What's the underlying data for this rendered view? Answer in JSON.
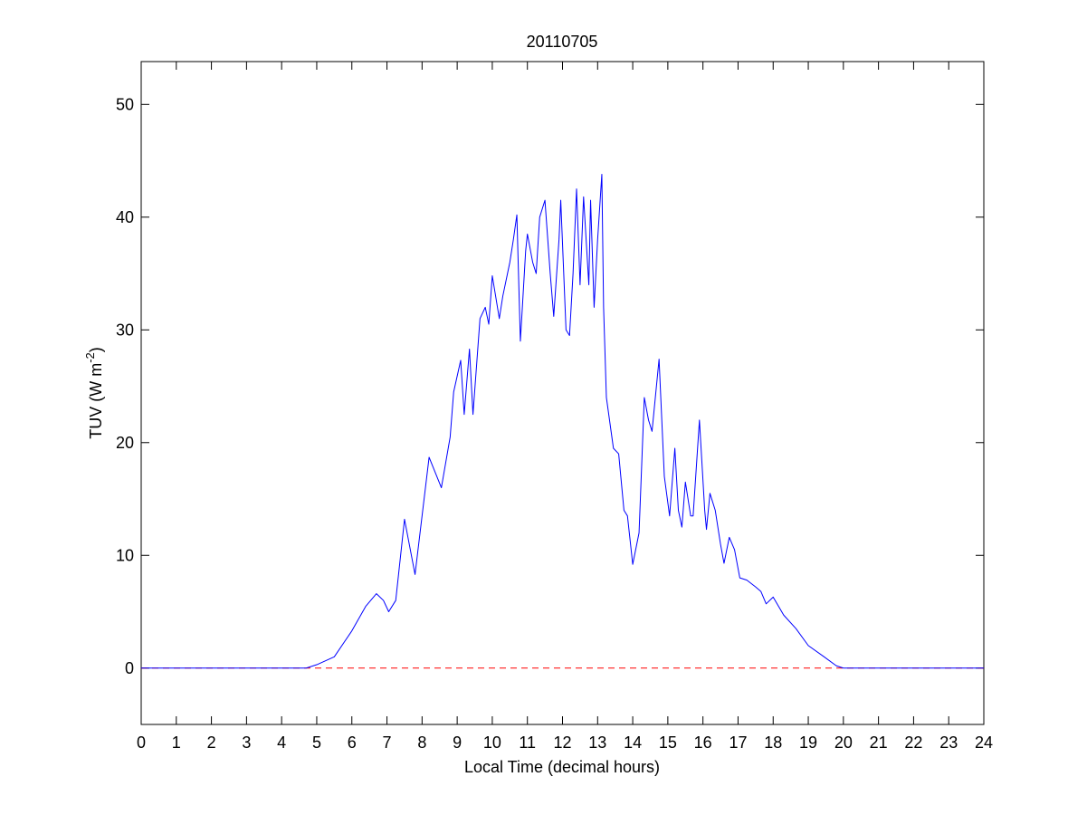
{
  "chart_data": {
    "type": "line",
    "title": "20110705",
    "xlabel": "Local Time (decimal hours)",
    "ylabel_parts": [
      "TUV (W m",
      "-2",
      ")"
    ],
    "xlim": [
      0,
      24
    ],
    "ylim": [
      -5,
      53.8
    ],
    "xticks": [
      0,
      1,
      2,
      3,
      4,
      5,
      6,
      7,
      8,
      9,
      10,
      11,
      12,
      13,
      14,
      15,
      16,
      17,
      18,
      19,
      20,
      21,
      22,
      23,
      24
    ],
    "yticks": [
      0,
      10,
      20,
      30,
      40,
      50
    ],
    "hline": {
      "y": 0,
      "color": "#ff0000",
      "dashed": true
    },
    "series": [
      {
        "color": "#0000ff",
        "x": [
          0,
          4.7,
          5.0,
          5.5,
          6.0,
          6.4,
          6.7,
          6.9,
          7.05,
          7.25,
          7.5,
          7.8,
          8.2,
          8.55,
          8.8,
          8.9,
          9.1,
          9.2,
          9.35,
          9.45,
          9.65,
          9.8,
          9.9,
          10.0,
          10.2,
          10.3,
          10.5,
          10.6,
          10.7,
          10.8,
          10.95,
          11.0,
          11.15,
          11.25,
          11.35,
          11.5,
          11.65,
          11.75,
          11.9,
          11.95,
          12.1,
          12.2,
          12.3,
          12.4,
          12.5,
          12.6,
          12.75,
          12.8,
          12.9,
          13.0,
          13.12,
          13.17,
          13.25,
          13.45,
          13.6,
          13.75,
          13.85,
          14.0,
          14.18,
          14.33,
          14.45,
          14.55,
          14.75,
          14.9,
          15.05,
          15.2,
          15.3,
          15.4,
          15.5,
          15.65,
          15.72,
          15.9,
          16.05,
          16.1,
          16.2,
          16.35,
          16.5,
          16.6,
          16.75,
          16.9,
          17.05,
          17.25,
          17.5,
          17.65,
          17.8,
          18.0,
          18.3,
          18.65,
          19.0,
          19.45,
          19.8,
          20.0,
          24
        ],
        "values": [
          0,
          0,
          0.3,
          1,
          3.3,
          5.5,
          6.6,
          6,
          5,
          6,
          13.2,
          8.3,
          18.7,
          16,
          20.5,
          24.5,
          27.3,
          22.5,
          28.3,
          22.5,
          31,
          32,
          30.5,
          34.8,
          31,
          33,
          36,
          38,
          40.2,
          29,
          37,
          38.5,
          36,
          35,
          40,
          41.5,
          35,
          31.2,
          38,
          41.5,
          30,
          29.5,
          35,
          42.5,
          34,
          41.8,
          34,
          41.5,
          32,
          38,
          43.8,
          32,
          24,
          19.5,
          19,
          14,
          13.5,
          9.2,
          12,
          24,
          22,
          21,
          27.4,
          17,
          13.5,
          19.5,
          14,
          12.5,
          16.5,
          13.5,
          13.5,
          22,
          14,
          12.3,
          15.5,
          14,
          11,
          9.3,
          11.6,
          10.5,
          8,
          7.8,
          7.2,
          6.8,
          5.7,
          6.3,
          4.7,
          3.5,
          2,
          1,
          0.2,
          0,
          0
        ]
      }
    ]
  }
}
